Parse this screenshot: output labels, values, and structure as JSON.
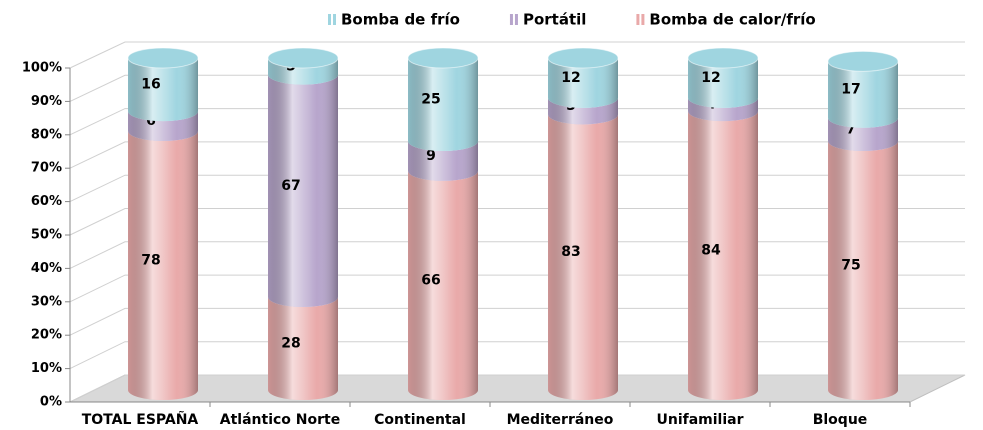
{
  "chart_data": {
    "type": "bar",
    "stacked": true,
    "categories": [
      "TOTAL ESPAÑA",
      "Atlántico Norte",
      "Continental",
      "Mediterráneo",
      "Unifamiliar",
      "Bloque"
    ],
    "series": [
      {
        "name": "Bomba de frío",
        "color": "#9fd5e0",
        "values": [
          16,
          5,
          25,
          12,
          12,
          17
        ]
      },
      {
        "name": "Portátil",
        "color": "#b7a5cc",
        "values": [
          6,
          67,
          9,
          5,
          4,
          7
        ]
      },
      {
        "name": "Bomba de calor/frío",
        "color": "#e9a9a9",
        "values": [
          78,
          28,
          66,
          83,
          84,
          75
        ]
      }
    ],
    "ylim": [
      0,
      100
    ],
    "yticks": [
      {
        "value": 0,
        "label": "0%"
      },
      {
        "value": 10,
        "label": "10%"
      },
      {
        "value": 20,
        "label": "20%"
      },
      {
        "value": 30,
        "label": "30%"
      },
      {
        "value": 40,
        "label": "40%"
      },
      {
        "value": 50,
        "label": "50%"
      },
      {
        "value": 60,
        "label": "60%"
      },
      {
        "value": 70,
        "label": "70%"
      },
      {
        "value": 80,
        "label": "80%"
      },
      {
        "value": 90,
        "label": "90%"
      },
      {
        "value": 100,
        "label": "100%"
      }
    ],
    "grid": true,
    "legend": "top"
  }
}
